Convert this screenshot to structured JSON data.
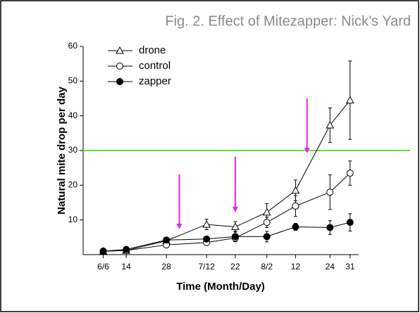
{
  "chart_data": {
    "type": "line",
    "title": "Fig. 2. Effect of Mitezapper: Nick’s  Yard",
    "x_label": "Time (Month/Day)",
    "y_label": "Natural mite drop per day",
    "x": [
      0,
      8,
      22,
      36,
      46,
      57,
      67,
      79,
      86
    ],
    "xlim": [
      -7,
      89
    ],
    "xticks": [
      {
        "value": 0,
        "label": "6/6"
      },
      {
        "value": 8,
        "label": "14"
      },
      {
        "value": 22,
        "label": "28"
      },
      {
        "value": 36,
        "label": "7/12"
      },
      {
        "value": 46,
        "label": "22"
      },
      {
        "value": 57,
        "label": "8/2"
      },
      {
        "value": 67,
        "label": "12"
      },
      {
        "value": 79,
        "label": "24"
      },
      {
        "value": 86,
        "label": "31"
      }
    ],
    "ylim": [
      0,
      60
    ],
    "yticks": [
      10,
      20,
      30,
      40,
      50,
      60
    ],
    "legend": "top-left",
    "series": [
      {
        "name": "drone",
        "color": "#000000",
        "marker": "triangle-open",
        "values": [
          1.0,
          1.2,
          4.0,
          8.7,
          8.0,
          12.2,
          18.5,
          37.3,
          44.5
        ],
        "errors": [
          0.3,
          0.3,
          0.5,
          1.5,
          1.5,
          2.5,
          3.0,
          5.0,
          11.3
        ]
      },
      {
        "name": "control",
        "color": "#000000",
        "marker": "circle-open",
        "values": [
          1.0,
          1.2,
          2.8,
          3.5,
          4.8,
          9.3,
          14.0,
          18.0,
          23.5
        ],
        "errors": [
          0.3,
          0.3,
          0.4,
          0.5,
          1.0,
          1.5,
          3.0,
          5.0,
          3.5
        ]
      },
      {
        "name": "zapper",
        "color": "#000000",
        "marker": "circle-filled",
        "values": [
          1.0,
          1.5,
          4.2,
          4.5,
          5.2,
          5.2,
          8.0,
          7.8,
          9.3
        ],
        "errors": [
          0.3,
          0.3,
          0.5,
          0.5,
          1.5,
          1.5,
          1.0,
          2.0,
          2.5
        ]
      }
    ],
    "hline": {
      "value": 30,
      "color": "#66dd33"
    },
    "arrows": [
      {
        "x": 26.5,
        "y_from": 23.1,
        "y_to": 7.3
      },
      {
        "x": 46,
        "y_from": 28.2,
        "y_to": 12.2
      },
      {
        "x": 71,
        "y_from": 45,
        "y_to": 29.2
      }
    ],
    "arrow_color": "#ee22ee"
  }
}
